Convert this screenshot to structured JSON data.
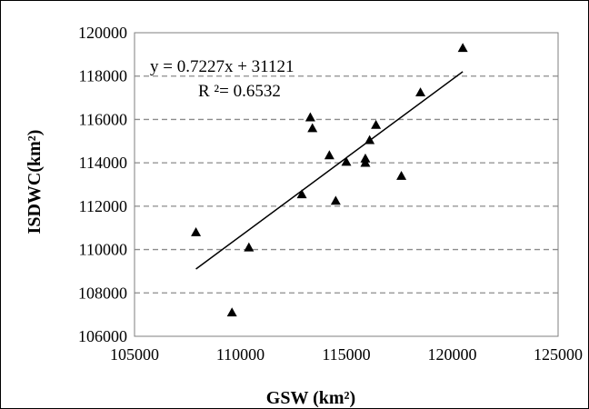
{
  "chart_data": {
    "type": "scatter",
    "xlabel": "GSW (km²)",
    "ylabel": "ISDWC(km²)",
    "xlim": [
      105000,
      125000
    ],
    "ylim": [
      106000,
      120000
    ],
    "xticks": [
      "105000",
      "110000",
      "115000",
      "120000",
      "125000"
    ],
    "yticks": [
      "106000",
      "108000",
      "110000",
      "112000",
      "114000",
      "116000",
      "118000",
      "120000"
    ],
    "grid": "horizontal dashed",
    "marker": "triangle",
    "marker_color": "#000000",
    "points": [
      {
        "x": 107900,
        "y": 110800
      },
      {
        "x": 109600,
        "y": 107100
      },
      {
        "x": 110400,
        "y": 110100
      },
      {
        "x": 112900,
        "y": 112550
      },
      {
        "x": 113300,
        "y": 116100
      },
      {
        "x": 113400,
        "y": 115600
      },
      {
        "x": 114200,
        "y": 114350
      },
      {
        "x": 114500,
        "y": 112250
      },
      {
        "x": 115000,
        "y": 114050
      },
      {
        "x": 115900,
        "y": 114200
      },
      {
        "x": 115900,
        "y": 114000
      },
      {
        "x": 116100,
        "y": 115050
      },
      {
        "x": 116400,
        "y": 115750
      },
      {
        "x": 117600,
        "y": 113400
      },
      {
        "x": 118500,
        "y": 117250
      },
      {
        "x": 120500,
        "y": 119300
      }
    ],
    "trendline": {
      "slope": 0.7227,
      "intercept": 31121,
      "x_range": [
        107900,
        120500
      ],
      "equation": "y = 0.7227x + 31121",
      "r2": "R ²= 0.6532"
    }
  }
}
